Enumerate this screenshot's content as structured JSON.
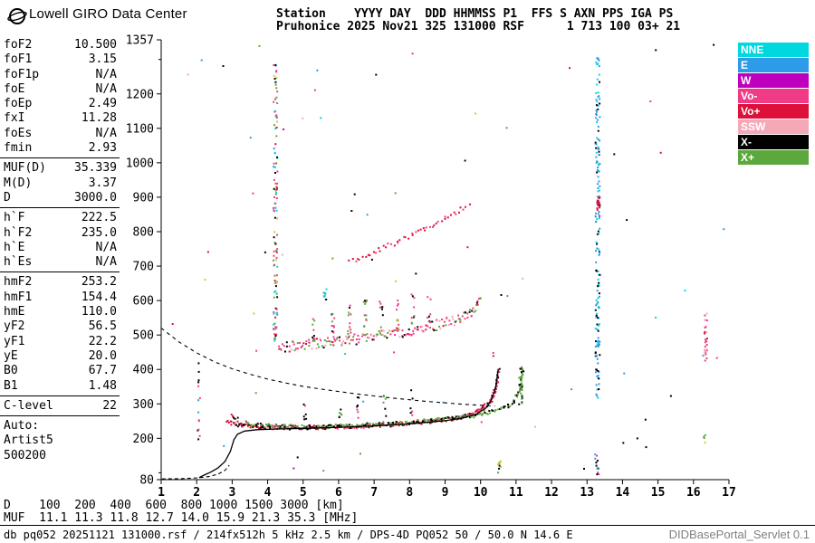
{
  "header": {
    "brand": "Lowell GIRO Data Center",
    "line1": "Station    YYYY DAY  DDD HHMMSS P1  FFS S AXN PPS IGA PS",
    "line2": "Pruhonice 2025 Nov21 325 131000 RSF      1 713 100 03+ 21"
  },
  "params": {
    "groups": [
      {
        "divider_after": true,
        "rows": [
          {
            "label": "foF2",
            "value": "10.500"
          },
          {
            "label": "foF1",
            "value": "3.15"
          },
          {
            "label": "foF1p",
            "value": "N/A"
          },
          {
            "label": "foE",
            "value": "N/A"
          },
          {
            "label": "foEp",
            "value": "2.49"
          },
          {
            "label": "fxI",
            "value": "11.28"
          },
          {
            "label": "foEs",
            "value": "N/A"
          },
          {
            "label": "fmin",
            "value": "2.93"
          }
        ]
      },
      {
        "divider_after": true,
        "rows": [
          {
            "label": "MUF(D)",
            "value": "35.339"
          },
          {
            "label": "M(D)",
            "value": "3.37"
          },
          {
            "label": "D",
            "value": "3000.0"
          }
        ]
      },
      {
        "divider_after": true,
        "rows": [
          {
            "label": "h`F",
            "value": "222.5"
          },
          {
            "label": "h`F2",
            "value": "235.0"
          },
          {
            "label": "h`E",
            "value": "N/A"
          },
          {
            "label": "h`Es",
            "value": "N/A"
          }
        ]
      },
      {
        "divider_after": true,
        "rows": [
          {
            "label": "hmF2",
            "value": "253.2"
          },
          {
            "label": "hmF1",
            "value": "154.4"
          },
          {
            "label": "hmE",
            "value": "110.0"
          },
          {
            "label": "yF2",
            "value": "56.5"
          },
          {
            "label": "yF1",
            "value": "22.2"
          },
          {
            "label": "yE",
            "value": "20.0"
          },
          {
            "label": "B0",
            "value": "67.7"
          },
          {
            "label": "B1",
            "value": "1.48"
          }
        ]
      },
      {
        "divider_after": true,
        "rows": [
          {
            "label": "C-level",
            "value": "22"
          }
        ]
      },
      {
        "divider_after": false,
        "rows": [
          {
            "label": "Auto:",
            "value": ""
          },
          {
            "label": "Artist5",
            "value": ""
          },
          {
            "label": "500200",
            "value": ""
          }
        ]
      }
    ]
  },
  "legend": {
    "items": [
      {
        "label": "NNE",
        "color": "#00D8E0"
      },
      {
        "label": "E",
        "color": "#2E9BE8"
      },
      {
        "label": "W",
        "color": "#BE00BE"
      },
      {
        "label": "Vo-",
        "color": "#F03C86"
      },
      {
        "label": "Vo+",
        "color": "#DC1038"
      },
      {
        "label": "SSW",
        "color": "#F5A8B8"
      },
      {
        "label": "X-",
        "color": "#000000"
      },
      {
        "label": "X+",
        "color": "#5CA83C"
      }
    ]
  },
  "muf_table": {
    "d_row": "D    100  200  400  600  800 1000 1500 3000 [km]",
    "muf_row": "MUF  11.1 11.3 11.8 12.7 14.0 15.9 21.3 35.3 [MHz]",
    "distances_km": [
      100,
      200,
      400,
      600,
      800,
      1000,
      1500,
      3000
    ],
    "muf_mhz": [
      11.1,
      11.3,
      11.8,
      12.7,
      14.0,
      15.9,
      21.3,
      35.3
    ]
  },
  "footer": {
    "status": "db pq052 20251121 131000.rsf / 214fx512h 5 kHz 2.5 km / DPS-4D PQ052 50 / 50.0 N 14.6 E",
    "servlet": "DIDBasePortal_Servlet 0.1"
  },
  "chart_data": {
    "type": "scatter",
    "xlim": [
      1,
      17
    ],
    "ylim": [
      80,
      1357
    ],
    "x_unit": "MHz",
    "y_unit": "km",
    "x_ticks": [
      1,
      2,
      3,
      4,
      5,
      6,
      7,
      8,
      9,
      10,
      11,
      12,
      13,
      14,
      15,
      16,
      17
    ],
    "y_tick_labels": [
      1357,
      1200,
      1100,
      1000,
      900,
      800,
      700,
      600,
      500,
      400,
      300,
      200,
      80
    ],
    "y_minor_ticks": [
      100,
      1300
    ],
    "traces": [
      {
        "name": "F-trace-O-mode-1st-hop",
        "density": 0.9,
        "jitter": 2.2,
        "colors": [
          "#DC1038",
          "#000000",
          "#F03C86"
        ],
        "points": [
          [
            2.85,
            248
          ],
          [
            3.1,
            240
          ],
          [
            3.5,
            235
          ],
          [
            4,
            232
          ],
          [
            5,
            231
          ],
          [
            6,
            233
          ],
          [
            7,
            237
          ],
          [
            8,
            243
          ],
          [
            9,
            253
          ],
          [
            9.6,
            264
          ],
          [
            10,
            280
          ],
          [
            10.3,
            310
          ],
          [
            10.45,
            355
          ],
          [
            10.52,
            400
          ]
        ]
      },
      {
        "name": "F-trace-X-mode-1st-hop",
        "density": 0.7,
        "jitter": 2.2,
        "colors": [
          "#5CA83C",
          "#000000"
        ],
        "points": [
          [
            3.4,
            242
          ],
          [
            4,
            236
          ],
          [
            5,
            233
          ],
          [
            6,
            235
          ],
          [
            7,
            240
          ],
          [
            8,
            246
          ],
          [
            9,
            255
          ],
          [
            9.8,
            266
          ],
          [
            10.4,
            280
          ],
          [
            10.9,
            300
          ],
          [
            11.1,
            340
          ],
          [
            11.2,
            405
          ]
        ]
      },
      {
        "name": "second-hop-trace",
        "density": 0.8,
        "jitter": 6,
        "colors": [
          "#F03C86",
          "#5CA83C",
          "#000000",
          "#F5A8B8",
          "#DC1038"
        ],
        "points": [
          [
            4.3,
            462
          ],
          [
            5,
            470
          ],
          [
            5.5,
            475
          ],
          [
            6,
            480
          ],
          [
            6.5,
            487
          ],
          [
            7,
            494
          ],
          [
            7.5,
            502
          ],
          [
            8,
            511
          ],
          [
            8.5,
            521
          ],
          [
            9,
            533
          ],
          [
            9.4,
            548
          ],
          [
            9.8,
            572
          ],
          [
            10,
            600
          ]
        ]
      },
      {
        "name": "third-hop-trace",
        "density": 0.33,
        "jitter": 2.5,
        "colors": [
          "#DC1038",
          "#F03C86"
        ],
        "points": [
          [
            6.3,
            712
          ],
          [
            7,
            742
          ],
          [
            7.6,
            768
          ],
          [
            8.2,
            796
          ],
          [
            8.8,
            828
          ],
          [
            9.3,
            856
          ],
          [
            9.7,
            882
          ]
        ]
      },
      {
        "name": "leading-edge-fmin",
        "density": 0.5,
        "jitter": 2.5,
        "colors": [
          "#000000",
          "#DC1038"
        ],
        "points": [
          [
            2.95,
            272
          ],
          [
            3.05,
            260
          ],
          [
            3.2,
            250
          ],
          [
            3.4,
            243
          ]
        ]
      }
    ],
    "columns": [
      {
        "f": 4.22,
        "from": 470,
        "to": 1285,
        "count": 110,
        "spread": 2.2,
        "colors": [
          "#F03C86",
          "#5CA83C",
          "#00D8E0",
          "#000000",
          "#DC1038",
          "#2E9BE8",
          "#CCC83E"
        ]
      },
      {
        "f": 13.3,
        "from": 315,
        "to": 1305,
        "count": 170,
        "spread": 2.4,
        "colors": [
          "#2E9BE8",
          "#00D8E0",
          "#000000"
        ]
      },
      {
        "f": 13.32,
        "from": 845,
        "to": 900,
        "count": 16,
        "spread": 1.6,
        "colors": [
          "#DC1038"
        ]
      },
      {
        "f": 13.28,
        "from": 85,
        "to": 155,
        "count": 12,
        "spread": 2.0,
        "colors": [
          "#000000",
          "#F03C86",
          "#5CA83C",
          "#2E9BE8"
        ]
      },
      {
        "f": 16.35,
        "from": 425,
        "to": 565,
        "count": 26,
        "spread": 1.6,
        "colors": [
          "#F03C86",
          "#DC1038",
          "#F5A8B8"
        ]
      },
      {
        "f": 16.3,
        "from": 185,
        "to": 215,
        "count": 5,
        "spread": 1.5,
        "colors": [
          "#CCC83E",
          "#5CA83C"
        ]
      },
      {
        "f": 11.13,
        "from": 298,
        "to": 415,
        "count": 26,
        "spread": 2.0,
        "colors": [
          "#5CA83C",
          "#000000"
        ]
      },
      {
        "f": 5.62,
        "from": 592,
        "to": 658,
        "count": 9,
        "spread": 1.6,
        "colors": [
          "#00D8E0",
          "#000000",
          "#F03C86"
        ]
      },
      {
        "f": 2.06,
        "from": 150,
        "to": 470,
        "count": 14,
        "spread": 1.4,
        "colors": [
          "#000000",
          "#F03C86",
          "#2E9BE8"
        ]
      },
      {
        "f": 10.52,
        "from": 95,
        "to": 140,
        "count": 9,
        "spread": 2.0,
        "colors": [
          "#CCC83E",
          "#5CA83C",
          "#000000"
        ]
      },
      {
        "f": 5.3,
        "from": 478,
        "to": 560,
        "count": 11,
        "spread": 1.6,
        "colors": [
          "#F03C86",
          "#5CA83C",
          "#000000"
        ]
      },
      {
        "f": 5.85,
        "from": 483,
        "to": 575,
        "count": 12,
        "spread": 1.8,
        "colors": [
          "#F03C86",
          "#5CA83C",
          "#000000"
        ]
      },
      {
        "f": 6.3,
        "from": 490,
        "to": 595,
        "count": 13,
        "spread": 1.8,
        "colors": [
          "#F03C86",
          "#5CA83C",
          "#000000",
          "#F5A8B8"
        ]
      },
      {
        "f": 6.75,
        "from": 495,
        "to": 610,
        "count": 12,
        "spread": 1.8,
        "colors": [
          "#5CA83C",
          "#F03C86",
          "#000000"
        ]
      },
      {
        "f": 7.2,
        "from": 500,
        "to": 600,
        "count": 10,
        "spread": 1.8,
        "colors": [
          "#F03C86",
          "#5CA83C",
          "#000000"
        ]
      },
      {
        "f": 7.65,
        "from": 508,
        "to": 615,
        "count": 10,
        "spread": 1.8,
        "colors": [
          "#F03C86",
          "#5CA83C",
          "#CCC83E"
        ]
      },
      {
        "f": 8.1,
        "from": 515,
        "to": 620,
        "count": 9,
        "spread": 1.8,
        "colors": [
          "#F03C86",
          "#5CA83C",
          "#000000"
        ]
      },
      {
        "f": 8.55,
        "from": 523,
        "to": 612,
        "count": 7,
        "spread": 1.8,
        "colors": [
          "#F03C86",
          "#000000"
        ]
      },
      {
        "f": 5.05,
        "from": 252,
        "to": 300,
        "count": 6,
        "spread": 1.4,
        "colors": [
          "#000000",
          "#5CA83C",
          "#F03C86"
        ]
      },
      {
        "f": 6.05,
        "from": 252,
        "to": 312,
        "count": 6,
        "spread": 1.4,
        "colors": [
          "#000000",
          "#5CA83C"
        ]
      },
      {
        "f": 6.55,
        "from": 250,
        "to": 322,
        "count": 7,
        "spread": 1.4,
        "colors": [
          "#000000",
          "#F03C86"
        ]
      },
      {
        "f": 7.3,
        "from": 255,
        "to": 332,
        "count": 6,
        "spread": 1.4,
        "colors": [
          "#5CA83C",
          "#000000"
        ]
      },
      {
        "f": 8.05,
        "from": 260,
        "to": 340,
        "count": 6,
        "spread": 1.4,
        "colors": [
          "#000000",
          "#F03C86"
        ]
      }
    ],
    "noise": {
      "count": 70,
      "colors": [
        "#000000",
        "#F03C86",
        "#5CA83C",
        "#2E9BE8",
        "#00D8E0",
        "#DC1038",
        "#F5A8B8",
        "#BE00BE",
        "#CCC83E"
      ]
    },
    "curves": [
      {
        "name": "transmission-curve-dashed",
        "dash": "4 4",
        "points": [
          [
            1,
            520
          ],
          [
            1.5,
            480
          ],
          [
            2,
            448
          ],
          [
            2.5,
            422
          ],
          [
            3,
            402
          ],
          [
            3.5,
            386
          ],
          [
            4,
            372
          ],
          [
            4.5,
            361
          ],
          [
            5,
            351
          ],
          [
            5.5,
            343
          ],
          [
            6,
            336
          ],
          [
            6.5,
            329
          ],
          [
            7,
            323
          ],
          [
            7.5,
            317
          ],
          [
            8,
            312
          ],
          [
            8.5,
            307
          ],
          [
            9,
            303
          ],
          [
            9.5,
            299
          ],
          [
            10,
            296
          ],
          [
            10.4,
            294
          ]
        ]
      },
      {
        "name": "artist-fitted-trace-solid",
        "dash": "",
        "points": [
          [
            2.07,
            86
          ],
          [
            2.2,
            93
          ],
          [
            2.4,
            102
          ],
          [
            2.6,
            114
          ],
          [
            2.8,
            133
          ],
          [
            2.95,
            162
          ],
          [
            3.05,
            196
          ],
          [
            3.15,
            212
          ],
          [
            3.35,
            221
          ],
          [
            3.7,
            225
          ],
          [
            4.2,
            227
          ],
          [
            5,
            229
          ],
          [
            6,
            232
          ],
          [
            7,
            236
          ],
          [
            8,
            242
          ],
          [
            9,
            251
          ],
          [
            9.5,
            259
          ],
          [
            9.9,
            271
          ],
          [
            10.15,
            288
          ],
          [
            10.3,
            310
          ],
          [
            10.42,
            345
          ],
          [
            10.5,
            400
          ]
        ]
      },
      {
        "name": "e-valley-dashed",
        "dash": "4 3",
        "points": [
          [
            1.02,
            82
          ],
          [
            1.55,
            83
          ],
          [
            2.0,
            85
          ],
          [
            2.35,
            89
          ],
          [
            2.6,
            96
          ],
          [
            2.8,
            107
          ],
          [
            2.92,
            122
          ]
        ]
      }
    ]
  }
}
